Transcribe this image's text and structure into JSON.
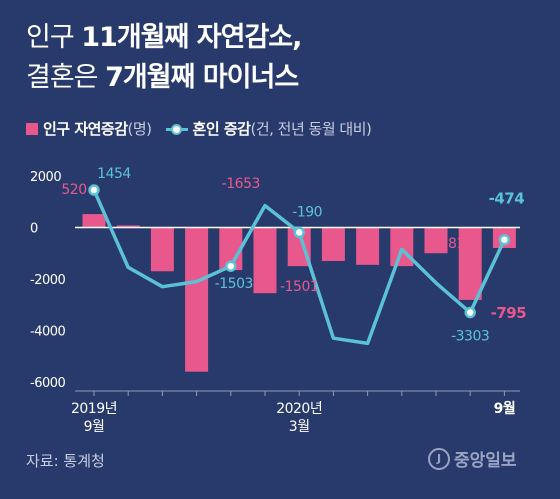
{
  "title": {
    "line1_light": "인구 ",
    "line1_bold": "11개월째 자연감소,",
    "line2_light": "결혼은 ",
    "line2_bold": "7개월째 마이너스"
  },
  "legend": {
    "bar_name": "인구 자연증감",
    "bar_unit": "(명)",
    "line_name": "혼인 증감",
    "line_unit": "(건, 전년 동월 대비)"
  },
  "source": "자료: 통계청",
  "logo": {
    "mark": "J",
    "name": "중앙일보"
  },
  "colors": {
    "background": "#283a6b",
    "bar": "#e8588c",
    "line": "#5bc2d6"
  },
  "chart_data": {
    "type": "bar+line",
    "ylim": [
      -6000,
      2000
    ],
    "yticks": [
      "2000",
      "0",
      "-2000",
      "-4000",
      "-6000"
    ],
    "x_tick_labels": [
      {
        "index": 0,
        "lines": [
          "2019년",
          "9월"
        ]
      },
      {
        "index": 6,
        "lines": [
          "2020년",
          "3월"
        ]
      },
      {
        "index": 12,
        "lines": [
          "9월"
        ]
      }
    ],
    "series": [
      {
        "name": "인구 자연증감",
        "kind": "bar",
        "values": [
          520,
          80,
          -1700,
          -5600,
          -1653,
          -2550,
          -1501,
          -1300,
          -1450,
          -1500,
          -1000,
          -2812,
          -795
        ]
      },
      {
        "name": "혼인 증감",
        "kind": "line",
        "values": [
          1454,
          -1550,
          -2300,
          -2100,
          -1503,
          850,
          -190,
          -4300,
          -4500,
          -850,
          -2150,
          -3303,
          -474
        ]
      }
    ],
    "bar_labels": [
      {
        "index": 0,
        "text": "520"
      },
      {
        "index": 4,
        "text": "-1653"
      },
      {
        "index": 6,
        "text": "-1501"
      },
      {
        "index": 11,
        "text": "-2812"
      },
      {
        "index": 12,
        "text": "-795"
      }
    ],
    "line_labels": [
      {
        "index": 0,
        "text": "1454"
      },
      {
        "index": 4,
        "text": "-1503"
      },
      {
        "index": 6,
        "text": "-190"
      },
      {
        "index": 11,
        "text": "-3303"
      },
      {
        "index": 12,
        "text": "-474"
      }
    ],
    "markers": [
      0,
      4,
      6,
      11,
      12
    ]
  }
}
